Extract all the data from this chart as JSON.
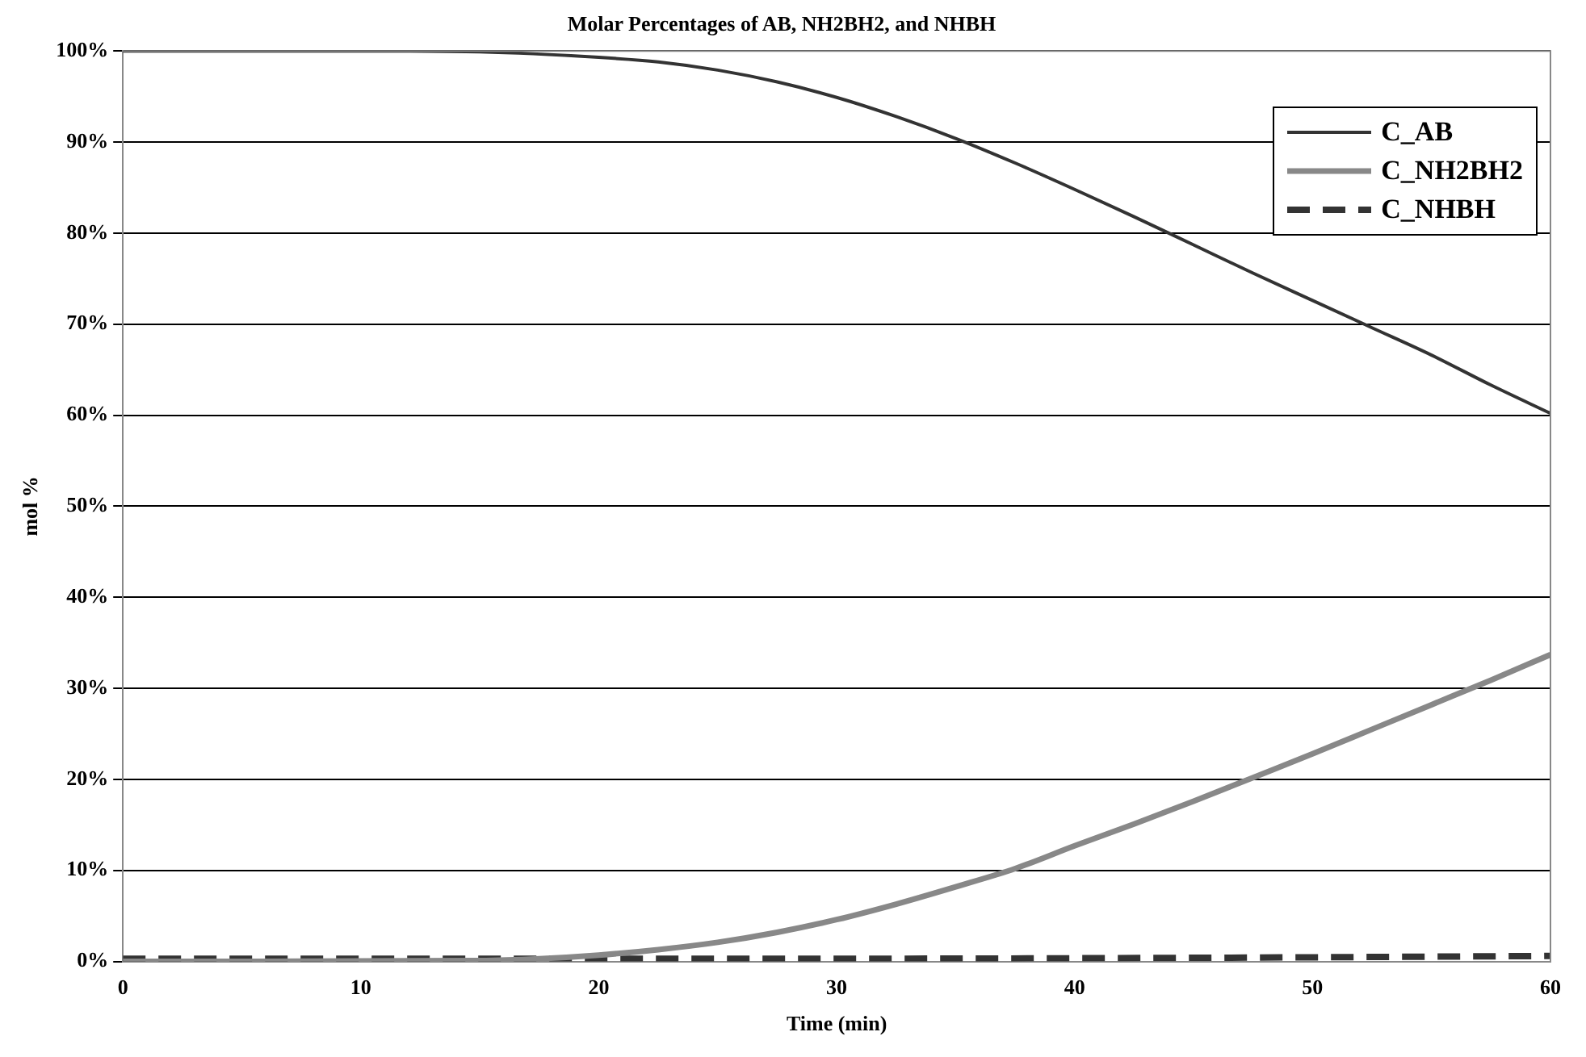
{
  "chart_data": {
    "type": "line",
    "title": "Molar Percentages of AB, NH2BH2, and NHBH",
    "xlabel": "Time (min)",
    "ylabel": "mol %",
    "xlim": [
      0,
      60
    ],
    "xticks": [
      0,
      10,
      20,
      30,
      40,
      50,
      60
    ],
    "ylim": [
      0,
      100
    ],
    "yticks": [
      {
        "value": 0,
        "label": "0%"
      },
      {
        "value": 10,
        "label": "10%"
      },
      {
        "value": 20,
        "label": "20%"
      },
      {
        "value": 30,
        "label": "30%"
      },
      {
        "value": 40,
        "label": "40%"
      },
      {
        "value": 50,
        "label": "50%"
      },
      {
        "value": 60,
        "label": "60%"
      },
      {
        "value": 70,
        "label": "70%"
      },
      {
        "value": 80,
        "label": "80%"
      },
      {
        "value": 90,
        "label": "90%"
      },
      {
        "value": 100,
        "label": "100%"
      }
    ],
    "grid": "y",
    "legend": "top right",
    "marker": "none",
    "series": [
      {
        "name": "C_AB",
        "color": "#333333",
        "line_style": "solid",
        "x": [
          0,
          5,
          10,
          15,
          20,
          22.5,
          25,
          27.5,
          30,
          32.5,
          35,
          37.5,
          40,
          42.5,
          45,
          47.5,
          50,
          52.5,
          55,
          57.5,
          60
        ],
        "values": [
          100,
          100,
          100,
          99.9,
          99.3,
          98.8,
          97.9,
          96.6,
          94.9,
          92.8,
          90.4,
          87.7,
          84.8,
          81.8,
          78.7,
          75.6,
          72.6,
          69.6,
          66.6,
          63.3,
          60.2
        ]
      },
      {
        "name": "C_NH2BH2",
        "color": "#888888",
        "line_style": "solid",
        "x": [
          0,
          15,
          17.5,
          20,
          22.5,
          25,
          27.5,
          30,
          32.5,
          35,
          37.5,
          40,
          42.5,
          45,
          47.5,
          50,
          52.5,
          55,
          57.5,
          60
        ],
        "values": [
          0,
          0.1,
          0.3,
          0.7,
          1.3,
          2.1,
          3.2,
          4.6,
          6.3,
          8.2,
          10.2,
          12.7,
          15.1,
          17.6,
          20.2,
          22.8,
          25.5,
          28.2,
          30.9,
          33.7
        ]
      },
      {
        "name": "C_NHBH",
        "color": "#333333",
        "line_style": "dashed",
        "x": [
          0,
          30,
          45,
          60
        ],
        "values": [
          0.3,
          0.3,
          0.4,
          0.6
        ]
      }
    ]
  }
}
